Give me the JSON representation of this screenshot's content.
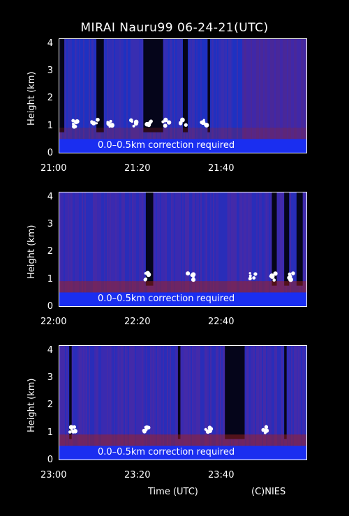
{
  "title": "MIRAI Nauru99 06-24-21(UTC)",
  "xlabel": "Time (UTC)",
  "credit": "(C)NIES",
  "colors": {
    "background": "#000000",
    "text": "#ffffff"
  },
  "chart_data": [
    {
      "type": "heatmap",
      "ylabel": "Height (km)",
      "ylim": [
        0,
        4.2
      ],
      "yticks": [
        "0",
        "1",
        "2",
        "3",
        "4"
      ],
      "xticks": [
        "21:00",
        "21:20",
        "21:40"
      ],
      "annotation": "0.0–0.5km correction required",
      "cloud_events": [
        0.4,
        0.85,
        1.25,
        1.8,
        2.2,
        2.6,
        3.0,
        3.5
      ]
    },
    {
      "type": "heatmap",
      "ylabel": "Height (km)",
      "ylim": [
        0,
        4.2
      ],
      "yticks": [
        "0",
        "1",
        "2",
        "3",
        "4"
      ],
      "xticks": [
        "22:00",
        "22:20",
        "22:40"
      ],
      "annotation": "0.0–0.5km correction required",
      "cloud_events": [
        2.1,
        3.2,
        4.7,
        5.2,
        5.6
      ]
    },
    {
      "type": "heatmap",
      "ylabel": "Height (km)",
      "ylim": [
        0,
        4.2
      ],
      "yticks": [
        "0",
        "1",
        "2",
        "3",
        "4"
      ],
      "xticks": [
        "23:00",
        "23:20",
        "23:40"
      ],
      "annotation": "0.0–0.5km correction required",
      "cloud_events": [
        0.3,
        2.1,
        3.6,
        5.0
      ]
    }
  ]
}
